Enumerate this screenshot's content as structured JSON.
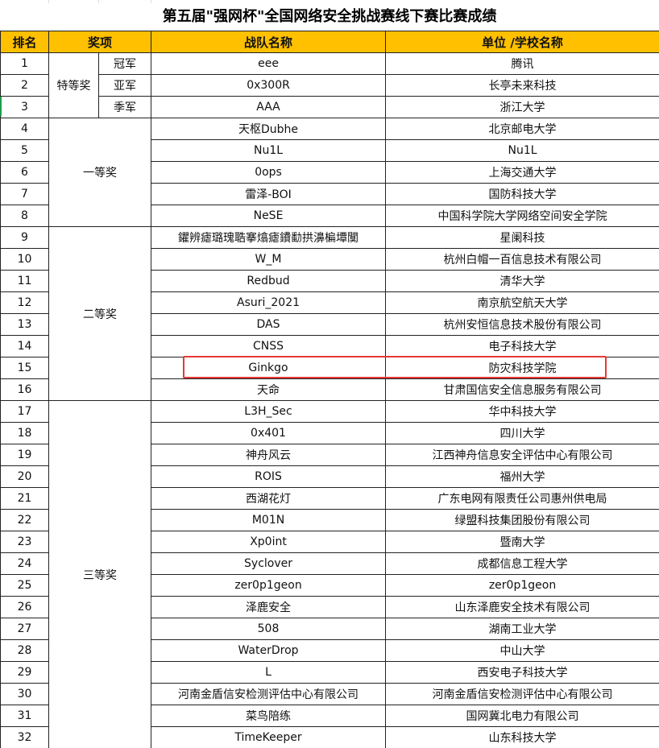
{
  "title": "第五届\"强网杯\"全国网络安全挑战赛线下赛比赛成绩",
  "headers": {
    "rank": "排名",
    "award": "奖项",
    "team": "战队名称",
    "unit": "单位 /学校名称"
  },
  "groups": [
    {
      "label": "特等奖",
      "rows": [
        {
          "rank": "1",
          "sub": "冠军",
          "team": "eee",
          "unit": "腾讯"
        },
        {
          "rank": "2",
          "sub": "亚军",
          "team": "0x300R",
          "unit": "长亭未来科技"
        },
        {
          "rank": "3",
          "sub": "季军",
          "team": "AAA",
          "unit": "浙江大学"
        }
      ]
    },
    {
      "label": "一等奖",
      "rows": [
        {
          "rank": "4",
          "team": "天枢Dubhe",
          "unit": "北京邮电大学"
        },
        {
          "rank": "5",
          "team": "Nu1L",
          "unit": "Nu1L"
        },
        {
          "rank": "6",
          "team": "0ops",
          "unit": "上海交通大学"
        },
        {
          "rank": "7",
          "team": "雷泽-BOI",
          "unit": "国防科技大学"
        },
        {
          "rank": "8",
          "team": "NeSE",
          "unit": "中国科学院大学网络空间安全学院"
        }
      ]
    },
    {
      "label": "二等奖",
      "rows": [
        {
          "rank": "9",
          "team": "鑺辨瘧璐瑰聕搴熻瘧鐨勫拱濞楄墰闃",
          "unit": "星阑科技"
        },
        {
          "rank": "10",
          "team": "W_M",
          "unit": "杭州白帽一百信息技术有限公司"
        },
        {
          "rank": "11",
          "team": "Redbud",
          "unit": "清华大学"
        },
        {
          "rank": "12",
          "team": "Asuri_2021",
          "unit": "南京航空航天大学"
        },
        {
          "rank": "13",
          "team": "DAS",
          "unit": "杭州安恒信息技术股份有限公司"
        },
        {
          "rank": "14",
          "team": "CNSS",
          "unit": "电子科技大学"
        },
        {
          "rank": "15",
          "team": "Ginkgo",
          "unit": "防灾科技学院"
        },
        {
          "rank": "16",
          "team": "天命",
          "unit": "甘肃国信安全信息服务有限公司"
        }
      ]
    },
    {
      "label": "三等奖",
      "rows": [
        {
          "rank": "17",
          "team": "L3H_Sec",
          "unit": "华中科技大学"
        },
        {
          "rank": "18",
          "team": "0x401",
          "unit": "四川大学"
        },
        {
          "rank": "19",
          "team": "神舟风云",
          "unit": "江西神舟信息安全评估中心有限公司"
        },
        {
          "rank": "20",
          "team": "ROIS",
          "unit": "福州大学"
        },
        {
          "rank": "21",
          "team": "西湖花灯",
          "unit": "广东电网有限责任公司惠州供电局"
        },
        {
          "rank": "22",
          "team": "M01N",
          "unit": "绿盟科技集团股份有限公司"
        },
        {
          "rank": "23",
          "team": "Xp0int",
          "unit": "暨南大学"
        },
        {
          "rank": "24",
          "team": "Syclover",
          "unit": "成都信息工程大学"
        },
        {
          "rank": "25",
          "team": "zer0p1geon",
          "unit": "zer0p1geon"
        },
        {
          "rank": "26",
          "team": "泽鹿安全",
          "unit": "山东泽鹿安全技术有限公司"
        },
        {
          "rank": "27",
          "team": "508",
          "unit": "湖南工业大学"
        },
        {
          "rank": "28",
          "team": "WaterDrop",
          "unit": "中山大学"
        },
        {
          "rank": "29",
          "team": "L",
          "unit": "西安电子科技大学"
        },
        {
          "rank": "30",
          "team": "河南金盾信安检测评估中心有限公司",
          "unit": "河南金盾信安检测评估中心有限公司"
        },
        {
          "rank": "31",
          "team": "菜鸟陪练",
          "unit": "国网冀北电力有限公司"
        },
        {
          "rank": "32",
          "team": "TimeKeeper",
          "unit": "山东科技大学"
        }
      ]
    }
  ],
  "highlight_color": "#e53935",
  "header_color": "#ffc000"
}
